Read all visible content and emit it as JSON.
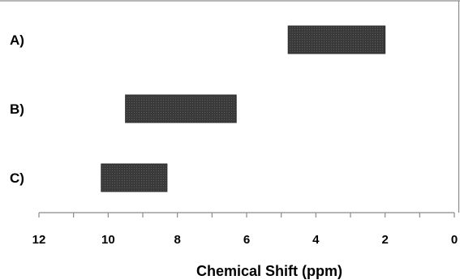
{
  "chart_data": {
    "type": "bar",
    "orientation": "horizontal-range",
    "categories": [
      "A)",
      "B)",
      "C)"
    ],
    "ranges": [
      {
        "category": "A)",
        "start": 4.8,
        "end": 2.0
      },
      {
        "category": "B)",
        "start": 9.5,
        "end": 6.3
      },
      {
        "category": "C)",
        "start": 10.2,
        "end": 8.3
      }
    ],
    "xlabel": "Chemical Shift (ppm)",
    "ylabel": "",
    "title": "",
    "xlim": [
      12,
      0
    ],
    "x_reversed": true,
    "x_ticks": [
      12,
      10,
      8,
      6,
      4,
      2,
      0
    ],
    "x_tick_labels": [
      "12",
      "10",
      "8",
      "6",
      "4",
      "2",
      "0"
    ],
    "grid": false,
    "bar_color": "#3a3a3a"
  }
}
